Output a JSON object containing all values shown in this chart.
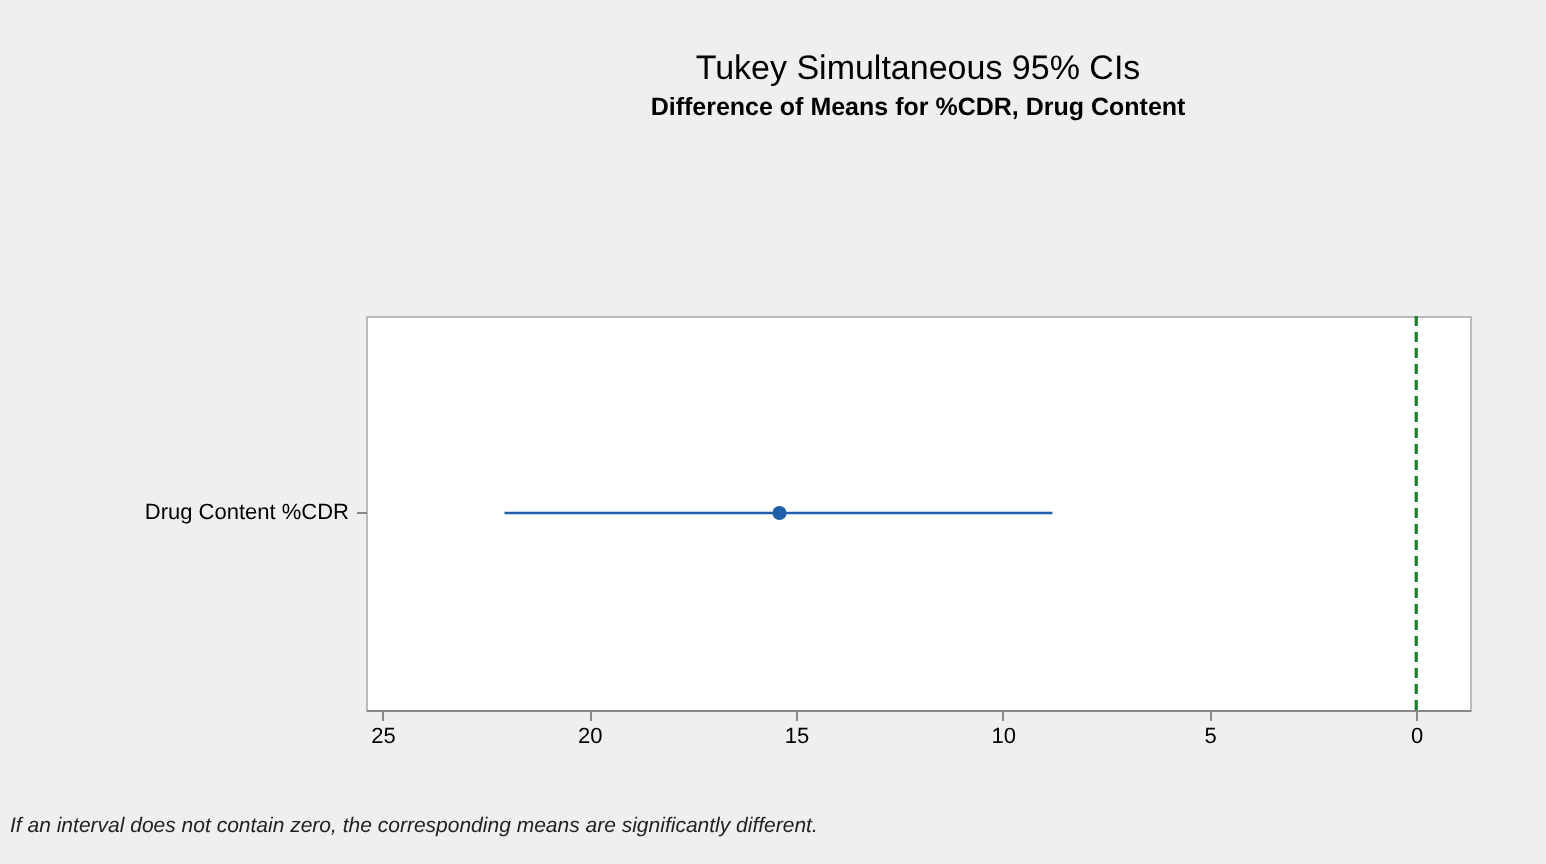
{
  "chart_data": {
    "type": "scatter",
    "orientation": "horizontal",
    "title": "Tukey Simultaneous 95% CIs",
    "subtitle": "Difference of Means for %CDR, Drug Content",
    "categories": [
      "Drug Content   %CDR"
    ],
    "series": [
      {
        "color": "#1f5fa8",
        "values": [
          15.4
        ],
        "errors": [
          [
            8.8,
            22.05
          ]
        ]
      }
    ],
    "xlim": [
      25.4,
      -1.3
    ],
    "xticks": [
      25,
      20,
      15,
      10,
      5,
      0
    ],
    "ref_lines": [
      {
        "axis": "x",
        "value": 0,
        "color": "#1a7f2a",
        "line_style": "dashed"
      }
    ],
    "marker": "circle",
    "annotations": [
      "If an interval does not contain zero, the corresponding means are significantly different."
    ]
  }
}
